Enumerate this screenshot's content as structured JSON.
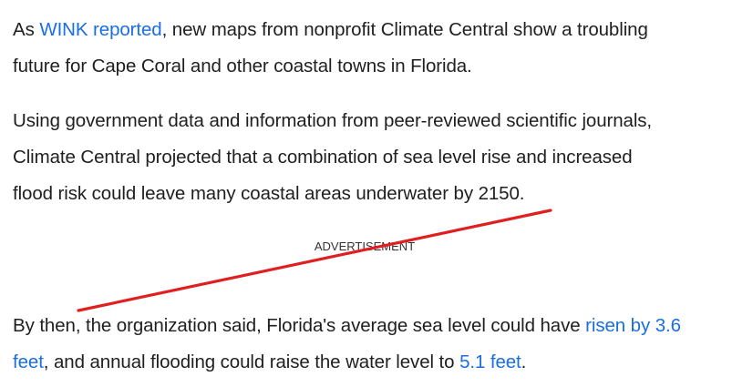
{
  "paragraph1": {
    "prefix": "As ",
    "link": "WINK reported",
    "rest_line1": ", new maps from nonprofit Climate Central show a troubling",
    "line2": "future for Cape Coral and other coastal towns in Florida."
  },
  "paragraph2": {
    "line1": "Using government data and information from peer-reviewed scientific journals,",
    "line2": "Climate Central projected that a combination of sea level rise and increased",
    "line3": "flood risk could leave many coastal areas underwater by 2150."
  },
  "advertisement_label": "ADVERTISEMENT",
  "paragraph3": {
    "line1_text": "By then, the organization said, Florida's average sea level could have ",
    "link1_part1": "risen by 3.6",
    "link1_part2": "feet",
    "mid_text": ", and annual flooding could raise the water level to ",
    "link2": "5.1 feet",
    "end_text": "."
  },
  "colors": {
    "link": "#1a6fe0",
    "text": "#1f1f1f",
    "annotation_line": "#e02020"
  }
}
